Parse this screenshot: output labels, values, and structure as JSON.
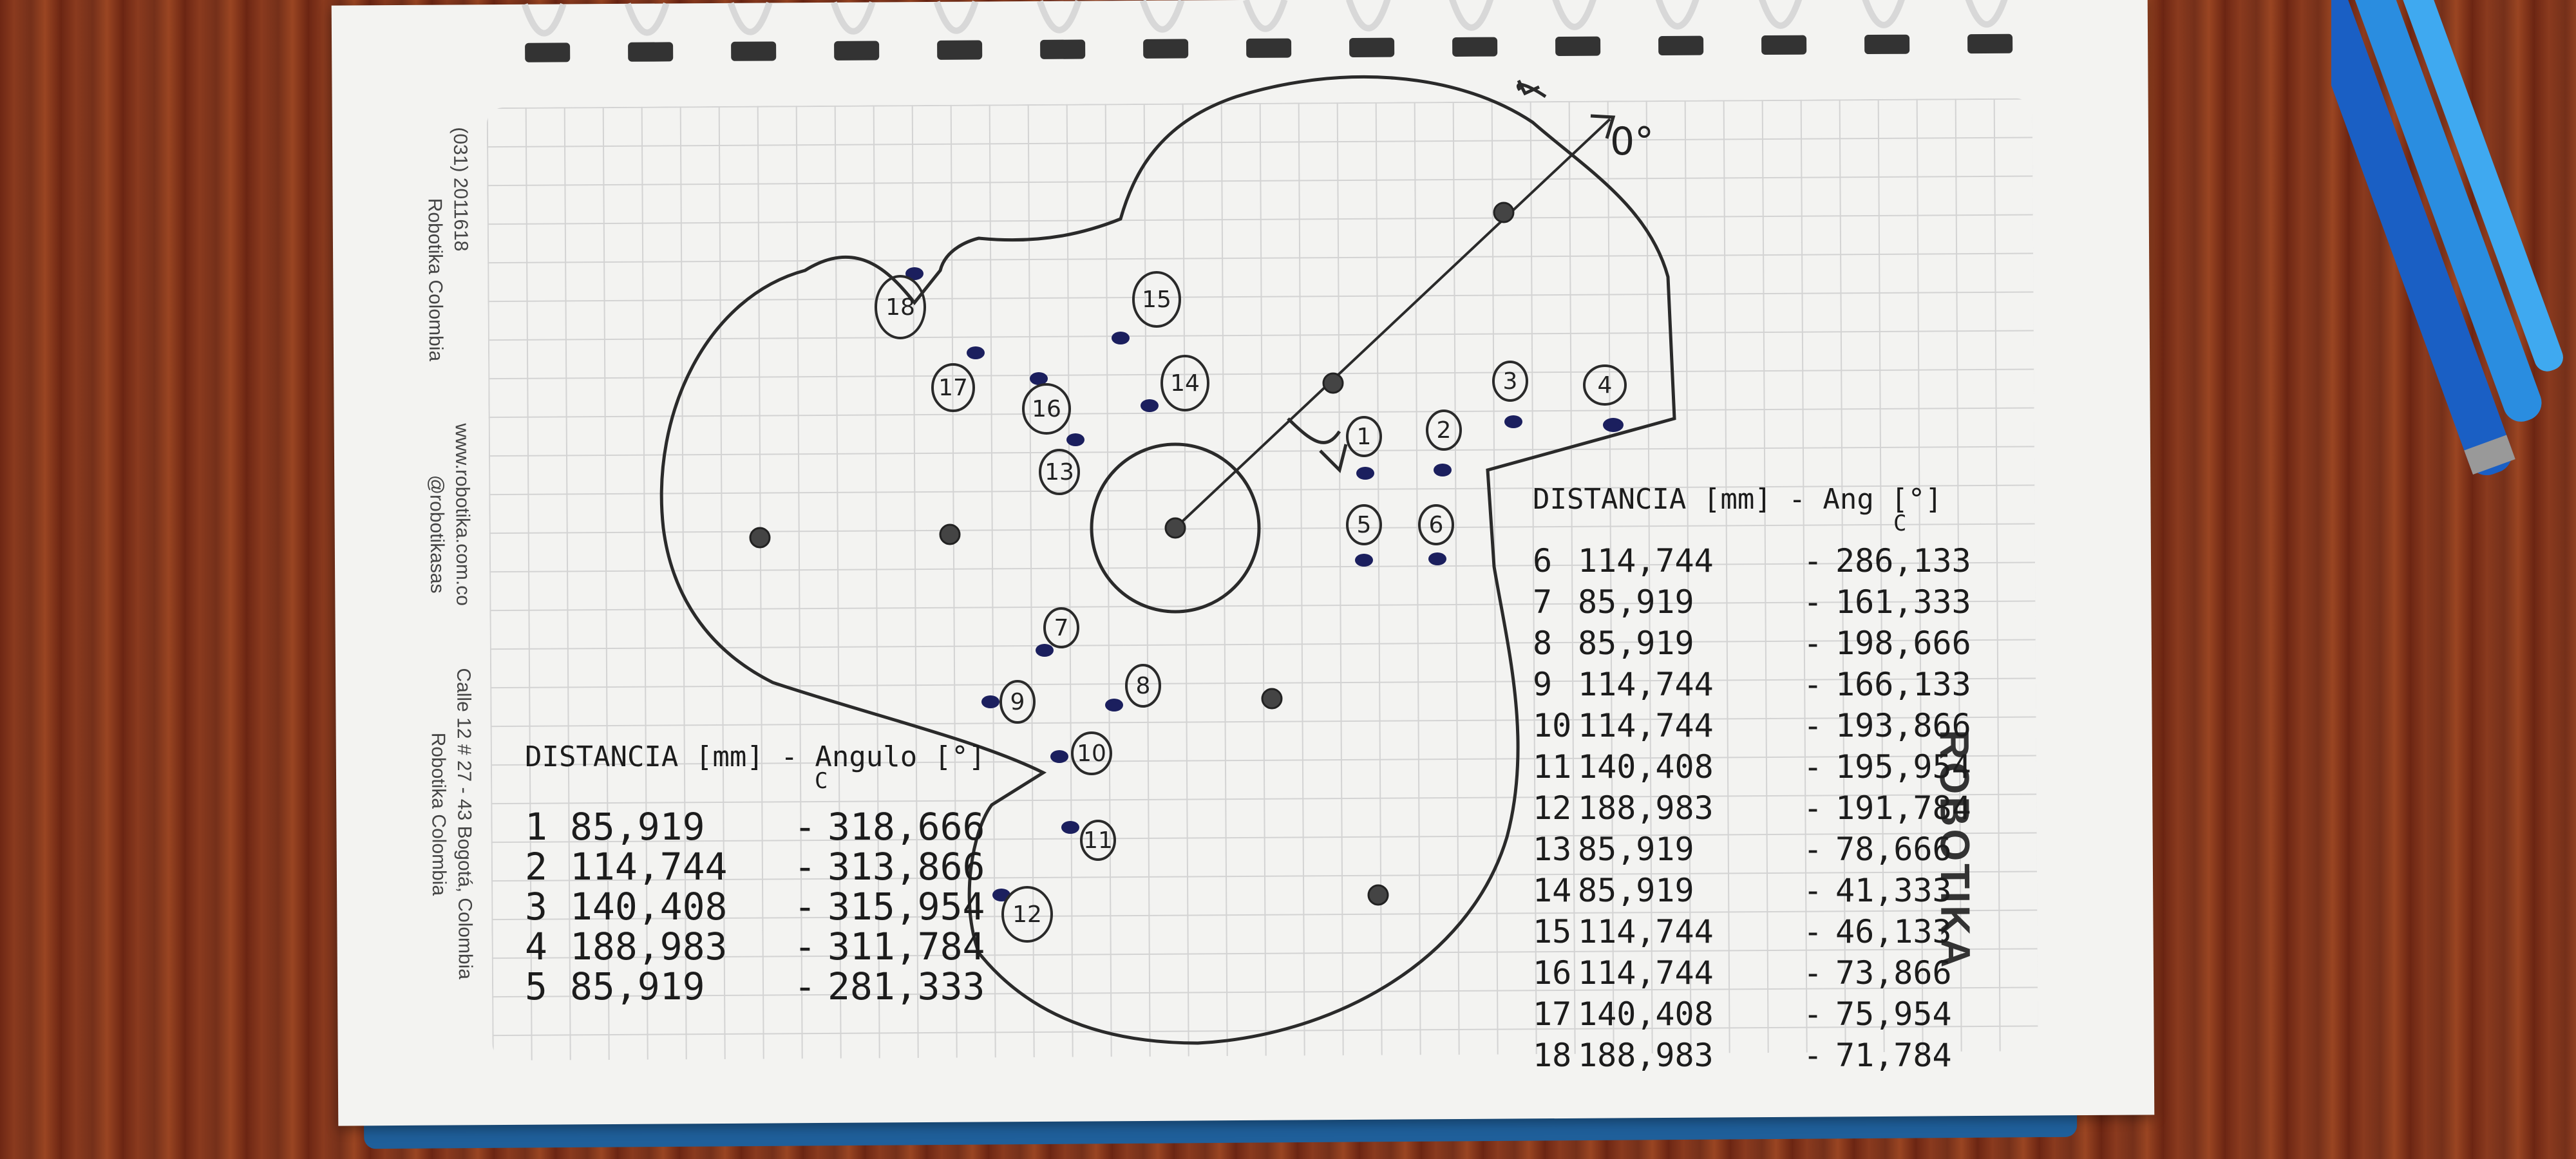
{
  "notebook": {
    "phone": "(031) 2011618",
    "facebook": "Robotika Colombia",
    "website": "www.robotika.com.co",
    "twitter": "@robotikasas",
    "address": "Calle 12 # 27 - 43 Bogotá, Colombia",
    "youtube": "Robotika Colombia",
    "brand": "ROBOTIKA"
  },
  "drawing": {
    "zero_label": "0°",
    "hole_labels": [
      "1",
      "2",
      "3",
      "4",
      "5",
      "6",
      "7",
      "8",
      "9",
      "10",
      "11",
      "12",
      "13",
      "14",
      "15",
      "16",
      "17",
      "18"
    ]
  },
  "table_left": {
    "header": "DISTANCIA [mm] - Angulo [°]",
    "header_sub": "C",
    "rows": [
      {
        "n": "1",
        "dist": "85,919",
        "ang": "318,666"
      },
      {
        "n": "2",
        "dist": "114,744",
        "ang": "313,866"
      },
      {
        "n": "3",
        "dist": "140,408",
        "ang": "315,954"
      },
      {
        "n": "4",
        "dist": "188,983",
        "ang": "311,784"
      },
      {
        "n": "5",
        "dist": "85,919",
        "ang": "281,333"
      }
    ]
  },
  "table_right": {
    "header": "DISTANCIA [mm] - Ang [°]",
    "header_sub": "C",
    "rows": [
      {
        "n": "6",
        "dist": "114,744",
        "ang": "286,133"
      },
      {
        "n": "7",
        "dist": "85,919",
        "ang": "161,333"
      },
      {
        "n": "8",
        "dist": "85,919",
        "ang": "198,666"
      },
      {
        "n": "9",
        "dist": "114,744",
        "ang": "166,133"
      },
      {
        "n": "10",
        "dist": "114,744",
        "ang": "193,866"
      },
      {
        "n": "11",
        "dist": "140,408",
        "ang": "195,954"
      },
      {
        "n": "12",
        "dist": "188,983",
        "ang": "191,784"
      },
      {
        "n": "13",
        "dist": "85,919",
        "ang": "78,666"
      },
      {
        "n": "14",
        "dist": "85,919",
        "ang": "41,333"
      },
      {
        "n": "15",
        "dist": "114,744",
        "ang": "46,133"
      },
      {
        "n": "16",
        "dist": "114,744",
        "ang": "73,866"
      },
      {
        "n": "17",
        "dist": "140,408",
        "ang": "75,954"
      },
      {
        "n": "18",
        "dist": "188,983",
        "ang": "71,784"
      }
    ]
  }
}
